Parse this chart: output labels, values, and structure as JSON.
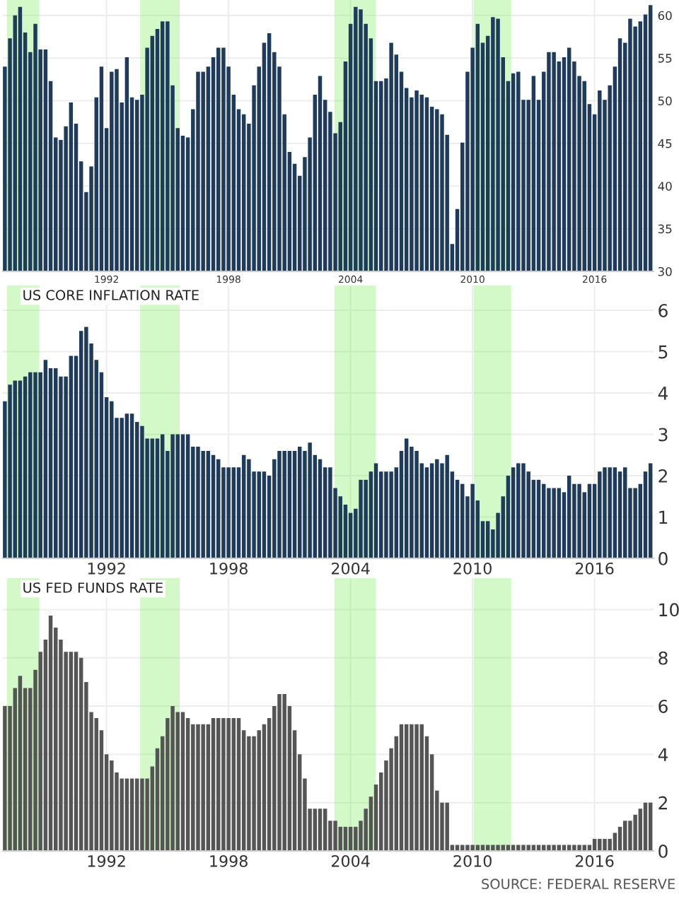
{
  "chart_data": [
    {
      "type": "bar",
      "x": [
        1987,
        1987.25,
        1987.5,
        1987.75,
        1988,
        1988.25,
        1988.5,
        1988.75,
        1989,
        1989.25,
        1989.5,
        1989.75,
        1990,
        1990.25,
        1990.5,
        1990.75,
        1991,
        1991.25,
        1991.5,
        1991.75,
        1992,
        1992.25,
        1992.5,
        1992.75,
        1993,
        1993.25,
        1993.5,
        1993.75,
        1994,
        1994.25,
        1994.5,
        1994.75,
        1995,
        1995.25,
        1995.5,
        1995.75,
        1996,
        1996.25,
        1996.5,
        1996.75,
        1997,
        1997.25,
        1997.5,
        1997.75,
        1998,
        1998.25,
        1998.5,
        1998.75,
        1999,
        1999.25,
        1999.5,
        1999.75,
        2000,
        2000.25,
        2000.5,
        2000.75,
        2001,
        2001.25,
        2001.5,
        2001.75,
        2002,
        2002.25,
        2002.5,
        2002.75,
        2003,
        2003.25,
        2003.5,
        2003.75,
        2004,
        2004.25,
        2004.5,
        2004.75,
        2005,
        2005.25,
        2005.5,
        2005.75,
        2006,
        2006.25,
        2006.5,
        2006.75,
        2007,
        2007.25,
        2007.5,
        2007.75,
        2008,
        2008.25,
        2008.5,
        2008.75,
        2009,
        2009.25,
        2009.5,
        2009.75,
        2010,
        2010.25,
        2010.5,
        2010.75,
        2011,
        2011.25,
        2011.5,
        2011.75,
        2012,
        2012.25,
        2012.5,
        2012.75,
        2013,
        2013.25,
        2013.5,
        2013.75,
        2014,
        2014.25,
        2014.5,
        2014.75,
        2015,
        2015.25,
        2015.5,
        2015.75,
        2016,
        2016.25,
        2016.5,
        2016.75,
        2017,
        2017.25,
        2017.5,
        2017.75,
        2018,
        2018.25,
        2018.5,
        2018.75
      ],
      "series": [
        {
          "color": "#1f3b5c",
          "values": [
            54,
            57.3,
            60,
            61,
            58,
            55.7,
            59,
            56,
            56,
            52.3,
            45.7,
            45.4,
            47,
            49.8,
            47.3,
            42.9,
            39.3,
            42.3,
            50.4,
            54,
            46.8,
            53.4,
            53.7,
            49.8,
            55.1,
            50.4,
            50.1,
            50.7,
            56.2,
            57.6,
            58.4,
            59.3,
            59.3,
            51.8,
            46.8,
            45.9,
            45.7,
            49,
            53.4,
            53.4,
            54,
            55.1,
            56.2,
            56.2,
            54,
            50.7,
            49,
            48.4,
            47.3,
            51.8,
            54,
            56.8,
            57.9,
            55.7,
            54,
            48.4,
            44,
            42.6,
            41.2,
            43.4,
            45.7,
            50.7,
            52.9,
            50.1,
            48.7,
            46.2,
            47.5,
            54.6,
            59,
            61,
            60.7,
            59,
            57.3,
            52.3,
            52.3,
            52.6,
            56.8,
            55.4,
            53.4,
            51.5,
            50.4,
            51.2,
            50.7,
            50.4,
            49.3,
            49,
            48.4,
            46,
            33.2,
            37.3,
            45.1,
            53.4,
            56.2,
            59,
            56.8,
            57.6,
            59.8,
            59.6,
            55.1,
            52.3,
            53.2,
            53.4,
            50.1,
            50.1,
            52.9,
            50.1,
            53.4,
            55.7,
            55.7,
            54.6,
            55.1,
            56.2,
            54.6,
            52.9,
            52.3,
            49.6,
            48.4,
            51.2,
            50.1,
            51.8,
            54,
            57.3,
            56.8,
            59.6,
            58.7,
            59.3,
            60.1,
            61.2
          ]
        }
      ],
      "xlim": [
        1986.9,
        2018.9
      ],
      "xticks": [
        1992,
        1998,
        2004,
        2010,
        2016
      ],
      "ylim": [
        30,
        61.8
      ],
      "yticks": [
        30,
        35,
        40,
        45,
        50,
        55,
        60
      ],
      "grid": true,
      "bands": [
        {
          "axis": "x",
          "from": 1987.2,
          "to": 1988.6,
          "color": "#80f060"
        },
        {
          "axis": "x",
          "from": 1993.75,
          "to": 1995.5,
          "color": "#80f060"
        },
        {
          "axis": "x",
          "from": 2003.3,
          "to": 2005.15,
          "color": "#80f060"
        },
        {
          "axis": "x",
          "from": 2010.15,
          "to": 2011.8,
          "color": "#80f060"
        }
      ]
    },
    {
      "type": "bar",
      "title": "US CORE INFLATION RATE",
      "x": [
        1987,
        1987.25,
        1987.5,
        1987.75,
        1988,
        1988.25,
        1988.5,
        1988.75,
        1989,
        1989.25,
        1989.5,
        1989.75,
        1990,
        1990.25,
        1990.5,
        1990.75,
        1991,
        1991.25,
        1991.5,
        1991.75,
        1992,
        1992.25,
        1992.5,
        1992.75,
        1993,
        1993.25,
        1993.5,
        1993.75,
        1994,
        1994.25,
        1994.5,
        1994.75,
        1995,
        1995.25,
        1995.5,
        1995.75,
        1996,
        1996.25,
        1996.5,
        1996.75,
        1997,
        1997.25,
        1997.5,
        1997.75,
        1998,
        1998.25,
        1998.5,
        1998.75,
        1999,
        1999.25,
        1999.5,
        1999.75,
        2000,
        2000.25,
        2000.5,
        2000.75,
        2001,
        2001.25,
        2001.5,
        2001.75,
        2002,
        2002.25,
        2002.5,
        2002.75,
        2003,
        2003.25,
        2003.5,
        2003.75,
        2004,
        2004.25,
        2004.5,
        2004.75,
        2005,
        2005.25,
        2005.5,
        2005.75,
        2006,
        2006.25,
        2006.5,
        2006.75,
        2007,
        2007.25,
        2007.5,
        2007.75,
        2008,
        2008.25,
        2008.5,
        2008.75,
        2009,
        2009.25,
        2009.5,
        2009.75,
        2010,
        2010.25,
        2010.5,
        2010.75,
        2011,
        2011.25,
        2011.5,
        2011.75,
        2012,
        2012.25,
        2012.5,
        2012.75,
        2013,
        2013.25,
        2013.5,
        2013.75,
        2014,
        2014.25,
        2014.5,
        2014.75,
        2015,
        2015.25,
        2015.5,
        2015.75,
        2016,
        2016.25,
        2016.5,
        2016.75,
        2017,
        2017.25,
        2017.5,
        2017.75,
        2018,
        2018.25,
        2018.5,
        2018.75
      ],
      "series": [
        {
          "color": "#1f3b5c",
          "values": [
            3.8,
            4.2,
            4.3,
            4.3,
            4.4,
            4.5,
            4.5,
            4.5,
            4.8,
            4.6,
            4.6,
            4.4,
            4.4,
            4.9,
            4.9,
            5.5,
            5.6,
            5.2,
            4.8,
            4.5,
            3.9,
            3.8,
            3.4,
            3.4,
            3.5,
            3.5,
            3.3,
            3.2,
            2.9,
            2.9,
            2.9,
            3.0,
            2.6,
            3.0,
            3.0,
            3.0,
            3.0,
            2.7,
            2.7,
            2.6,
            2.6,
            2.5,
            2.4,
            2.2,
            2.2,
            2.2,
            2.2,
            2.5,
            2.4,
            2.1,
            2.1,
            2.1,
            2.0,
            2.4,
            2.6,
            2.6,
            2.6,
            2.6,
            2.7,
            2.6,
            2.8,
            2.5,
            2.4,
            2.2,
            2.2,
            1.7,
            1.5,
            1.3,
            1.1,
            1.2,
            1.9,
            1.9,
            2.1,
            2.3,
            2.1,
            2.1,
            2.1,
            2.2,
            2.6,
            2.9,
            2.7,
            2.6,
            2.3,
            2.2,
            2.3,
            2.4,
            2.3,
            2.5,
            2.1,
            1.9,
            1.8,
            1.5,
            1.8,
            1.4,
            0.9,
            0.9,
            0.7,
            1.1,
            1.5,
            2.0,
            2.2,
            2.3,
            2.3,
            2.1,
            1.9,
            1.9,
            1.8,
            1.7,
            1.7,
            1.7,
            1.6,
            2.0,
            1.8,
            1.8,
            1.6,
            1.8,
            1.8,
            2.1,
            2.2,
            2.2,
            2.2,
            2.1,
            2.2,
            1.7,
            1.7,
            1.8,
            2.1,
            2.3
          ]
        }
      ],
      "xlim": [
        1986.9,
        2018.9
      ],
      "xticks": [
        1992,
        1998,
        2004,
        2010,
        2016
      ],
      "ylim": [
        0,
        6.6
      ],
      "yticks": [
        0,
        1,
        2,
        3,
        4,
        5,
        6
      ],
      "grid": true,
      "bands": [
        {
          "axis": "x",
          "from": 1987.2,
          "to": 1988.6,
          "color": "#80f060"
        },
        {
          "axis": "x",
          "from": 1993.75,
          "to": 1995.5,
          "color": "#80f060"
        },
        {
          "axis": "x",
          "from": 2003.3,
          "to": 2005.15,
          "color": "#80f060"
        },
        {
          "axis": "x",
          "from": 2010.15,
          "to": 2011.8,
          "color": "#80f060"
        }
      ]
    },
    {
      "type": "bar",
      "title": "US FED FUNDS RATE",
      "x": [
        1987,
        1987.25,
        1987.5,
        1987.75,
        1988,
        1988.25,
        1988.5,
        1988.75,
        1989,
        1989.25,
        1989.5,
        1989.75,
        1990,
        1990.25,
        1990.5,
        1990.75,
        1991,
        1991.25,
        1991.5,
        1991.75,
        1992,
        1992.25,
        1992.5,
        1992.75,
        1993,
        1993.25,
        1993.5,
        1993.75,
        1994,
        1994.25,
        1994.5,
        1994.75,
        1995,
        1995.25,
        1995.5,
        1995.75,
        1996,
        1996.25,
        1996.5,
        1996.75,
        1997,
        1997.25,
        1997.5,
        1997.75,
        1998,
        1998.25,
        1998.5,
        1998.75,
        1999,
        1999.25,
        1999.5,
        1999.75,
        2000,
        2000.25,
        2000.5,
        2000.75,
        2001,
        2001.25,
        2001.5,
        2001.75,
        2002,
        2002.25,
        2002.5,
        2002.75,
        2003,
        2003.25,
        2003.5,
        2003.75,
        2004,
        2004.25,
        2004.5,
        2004.75,
        2005,
        2005.25,
        2005.5,
        2005.75,
        2006,
        2006.25,
        2006.5,
        2006.75,
        2007,
        2007.25,
        2007.5,
        2007.75,
        2008,
        2008.25,
        2008.5,
        2008.75,
        2009,
        2009.25,
        2009.5,
        2009.75,
        2010,
        2010.25,
        2010.5,
        2010.75,
        2011,
        2011.25,
        2011.5,
        2011.75,
        2012,
        2012.25,
        2012.5,
        2012.75,
        2013,
        2013.25,
        2013.5,
        2013.75,
        2014,
        2014.25,
        2014.5,
        2014.75,
        2015,
        2015.25,
        2015.5,
        2015.75,
        2016,
        2016.25,
        2016.5,
        2016.75,
        2017,
        2017.25,
        2017.5,
        2017.75,
        2018,
        2018.25,
        2018.5,
        2018.75
      ],
      "series": [
        {
          "color": "#555555",
          "values": [
            6.0,
            6.0,
            6.75,
            7.25,
            6.75,
            6.75,
            7.5,
            8.25,
            8.75,
            9.75,
            9.25,
            8.75,
            8.25,
            8.25,
            8.25,
            8.0,
            7.0,
            5.75,
            5.5,
            5.0,
            4.0,
            3.75,
            3.25,
            3.0,
            3.0,
            3.0,
            3.0,
            3.0,
            3.0,
            3.5,
            4.25,
            4.75,
            5.5,
            6.0,
            5.75,
            5.75,
            5.5,
            5.25,
            5.25,
            5.25,
            5.25,
            5.5,
            5.5,
            5.5,
            5.5,
            5.5,
            5.5,
            5.0,
            4.75,
            4.75,
            5.0,
            5.25,
            5.5,
            6.0,
            6.5,
            6.5,
            6.0,
            5.0,
            4.0,
            3.0,
            1.75,
            1.75,
            1.75,
            1.75,
            1.25,
            1.25,
            1.0,
            1.0,
            1.0,
            1.0,
            1.25,
            1.75,
            2.25,
            2.75,
            3.25,
            3.75,
            4.25,
            4.75,
            5.25,
            5.25,
            5.25,
            5.25,
            5.25,
            4.75,
            4.0,
            2.5,
            2.0,
            2.0,
            0.25,
            0.25,
            0.25,
            0.25,
            0.25,
            0.25,
            0.25,
            0.25,
            0.25,
            0.25,
            0.25,
            0.25,
            0.25,
            0.25,
            0.25,
            0.25,
            0.25,
            0.25,
            0.25,
            0.25,
            0.25,
            0.25,
            0.25,
            0.25,
            0.25,
            0.25,
            0.25,
            0.25,
            0.5,
            0.5,
            0.5,
            0.5,
            0.75,
            1.0,
            1.25,
            1.25,
            1.5,
            1.75,
            2.0,
            2.0
          ]
        }
      ],
      "xlim": [
        1986.9,
        2018.9
      ],
      "xticks": [
        1992,
        1998,
        2004,
        2010,
        2016
      ],
      "ylim": [
        0,
        11.3
      ],
      "yticks": [
        0,
        2,
        4,
        6,
        8,
        10
      ],
      "grid": true,
      "annotations": [
        "SOURCE: FEDERAL RESERVE"
      ],
      "bands": [
        {
          "axis": "x",
          "from": 1987.2,
          "to": 1988.6,
          "color": "#80f060"
        },
        {
          "axis": "x",
          "from": 1993.75,
          "to": 1995.5,
          "color": "#80f060"
        },
        {
          "axis": "x",
          "from": 2003.3,
          "to": 2005.15,
          "color": "#80f060"
        },
        {
          "axis": "x",
          "from": 2010.15,
          "to": 2011.8,
          "color": "#80f060"
        }
      ]
    }
  ]
}
